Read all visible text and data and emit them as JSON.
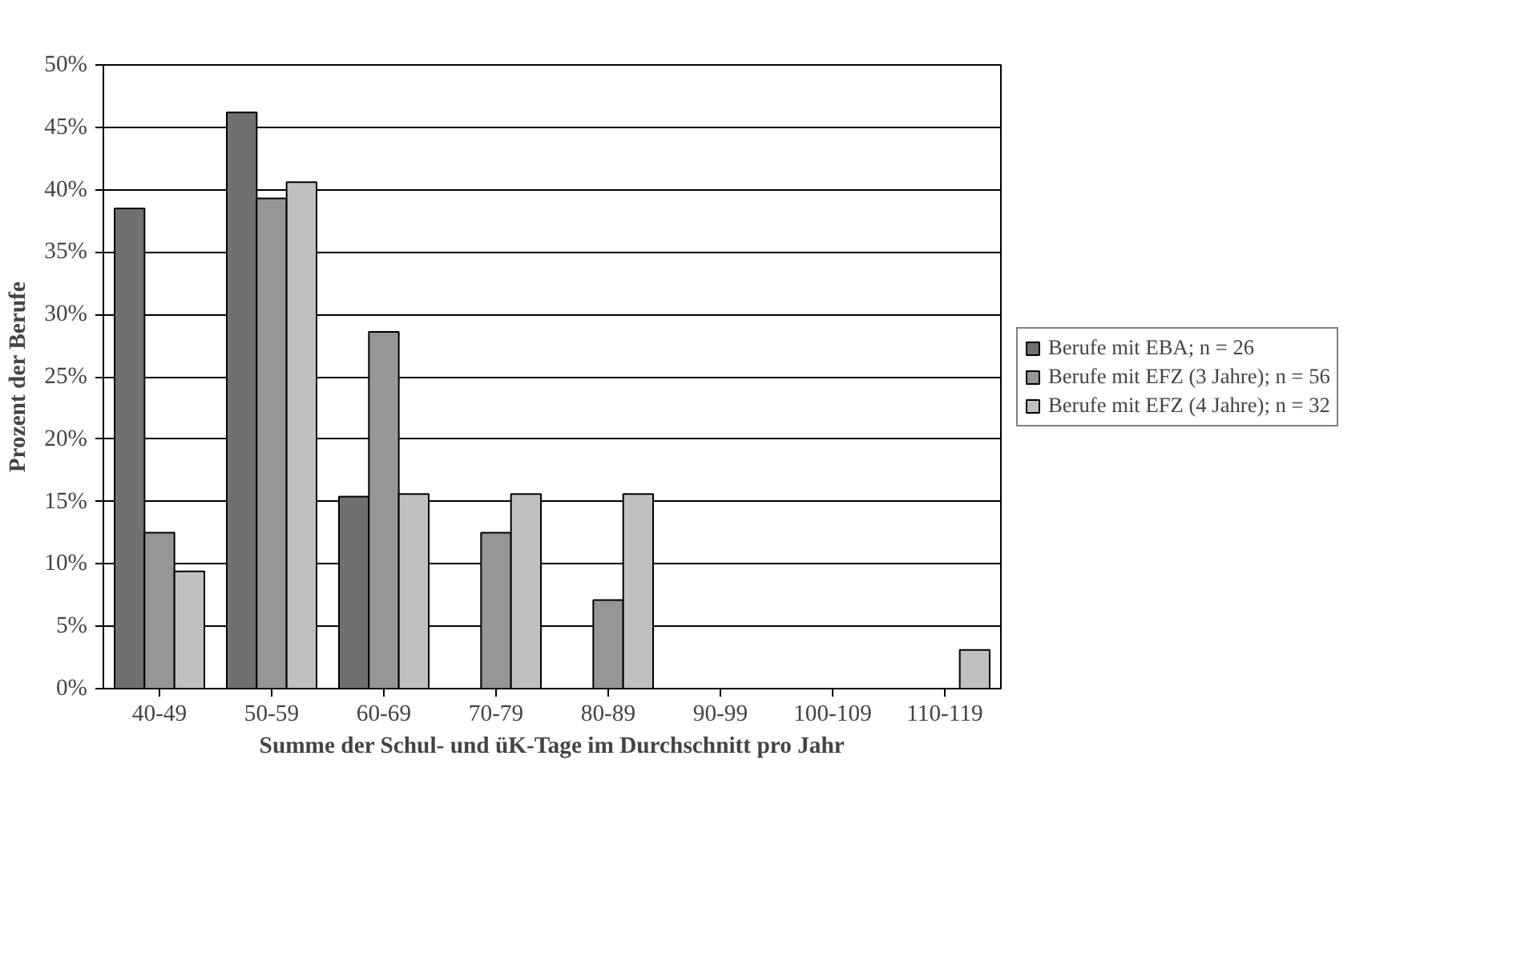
{
  "chart_data": {
    "type": "bar",
    "xlabel": "Summe der Schul- und üK-Tage im Durchschnitt pro Jahr",
    "ylabel": "Prozent der Berufe",
    "categories": [
      "40-49",
      "50-59",
      "60-69",
      "70-79",
      "80-89",
      "90-99",
      "100-109",
      "110-119"
    ],
    "series": [
      {
        "name": "Berufe mit EBA; n = 26",
        "color": "#707070",
        "values": [
          38.5,
          46.2,
          15.4,
          0,
          0,
          0,
          0,
          0
        ]
      },
      {
        "name": "Berufe mit EFZ (3 Jahre); n = 56",
        "color": "#969696",
        "values": [
          12.5,
          39.3,
          28.6,
          12.5,
          7.1,
          0,
          0,
          0
        ]
      },
      {
        "name": "Berufe mit EFZ (4 Jahre); n = 32",
        "color": "#c0c0c0",
        "values": [
          9.4,
          40.6,
          15.6,
          15.6,
          15.6,
          0,
          0,
          3.1
        ]
      }
    ],
    "ylim": [
      0,
      50
    ],
    "yticks": [
      {
        "value": 0,
        "label": "0%"
      },
      {
        "value": 5,
        "label": "5%"
      },
      {
        "value": 10,
        "label": "10%"
      },
      {
        "value": 15,
        "label": "15%"
      },
      {
        "value": 20,
        "label": "20%"
      },
      {
        "value": 25,
        "label": "25%"
      },
      {
        "value": 30,
        "label": "30%"
      },
      {
        "value": 35,
        "label": "35%"
      },
      {
        "value": 40,
        "label": "40%"
      },
      {
        "value": 45,
        "label": "45%"
      },
      {
        "value": 50,
        "label": "50%"
      }
    ],
    "grid": "y",
    "legend": "right"
  }
}
